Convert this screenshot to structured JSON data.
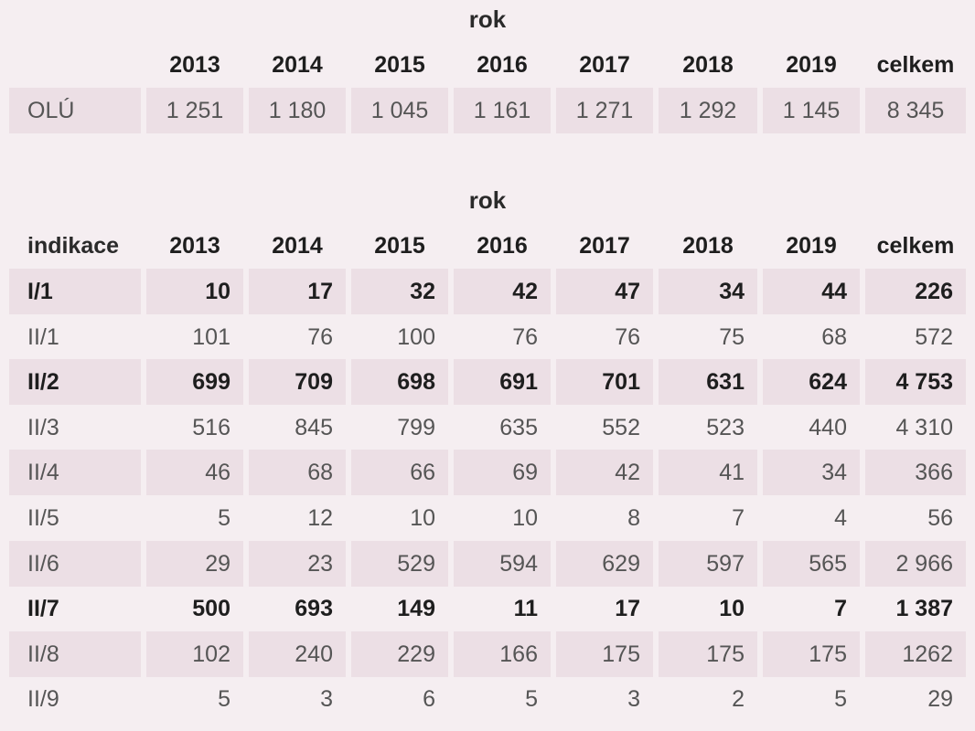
{
  "table1": {
    "rok_label": "rok",
    "headers": [
      "",
      "2013",
      "2014",
      "2015",
      "2016",
      "2017",
      "2018",
      "2019",
      "celkem"
    ],
    "rows": [
      {
        "label": "OLÚ",
        "values": [
          "1 251",
          "1 180",
          "1 045",
          "1 161",
          "1 271",
          "1 292",
          "1 145",
          "8 345"
        ]
      }
    ]
  },
  "table2": {
    "rok_label": "rok",
    "headers": [
      "indikace",
      "2013",
      "2014",
      "2015",
      "2016",
      "2017",
      "2018",
      "2019",
      "celkem"
    ],
    "rows": [
      {
        "label": "I/1",
        "values": [
          "10",
          "17",
          "32",
          "42",
          "47",
          "34",
          "44",
          "226"
        ]
      },
      {
        "label": "II/1",
        "values": [
          "101",
          "76",
          "100",
          "76",
          "76",
          "75",
          "68",
          "572"
        ]
      },
      {
        "label": "II/2",
        "values": [
          "699",
          "709",
          "698",
          "691",
          "701",
          "631",
          "624",
          "4 753"
        ]
      },
      {
        "label": "II/3",
        "values": [
          "516",
          "845",
          "799",
          "635",
          "552",
          "523",
          "440",
          "4 310"
        ]
      },
      {
        "label": "II/4",
        "values": [
          "46",
          "68",
          "66",
          "69",
          "42",
          "41",
          "34",
          "366"
        ]
      },
      {
        "label": "II/5",
        "values": [
          "5",
          "12",
          "10",
          "10",
          "8",
          "7",
          "4",
          "56"
        ]
      },
      {
        "label": "II/6",
        "values": [
          "29",
          "23",
          "529",
          "594",
          "629",
          "597",
          "565",
          "2 966"
        ]
      },
      {
        "label": "II/7",
        "values": [
          "500",
          "693",
          "149",
          "11",
          "17",
          "10",
          "7",
          "1 387"
        ]
      },
      {
        "label": "II/8",
        "values": [
          "102",
          "240",
          "229",
          "166",
          "175",
          "175",
          "175",
          "1262"
        ]
      },
      {
        "label": "II/9",
        "values": [
          "5",
          "3",
          "6",
          "5",
          "3",
          "2",
          "5",
          "29"
        ]
      }
    ]
  }
}
